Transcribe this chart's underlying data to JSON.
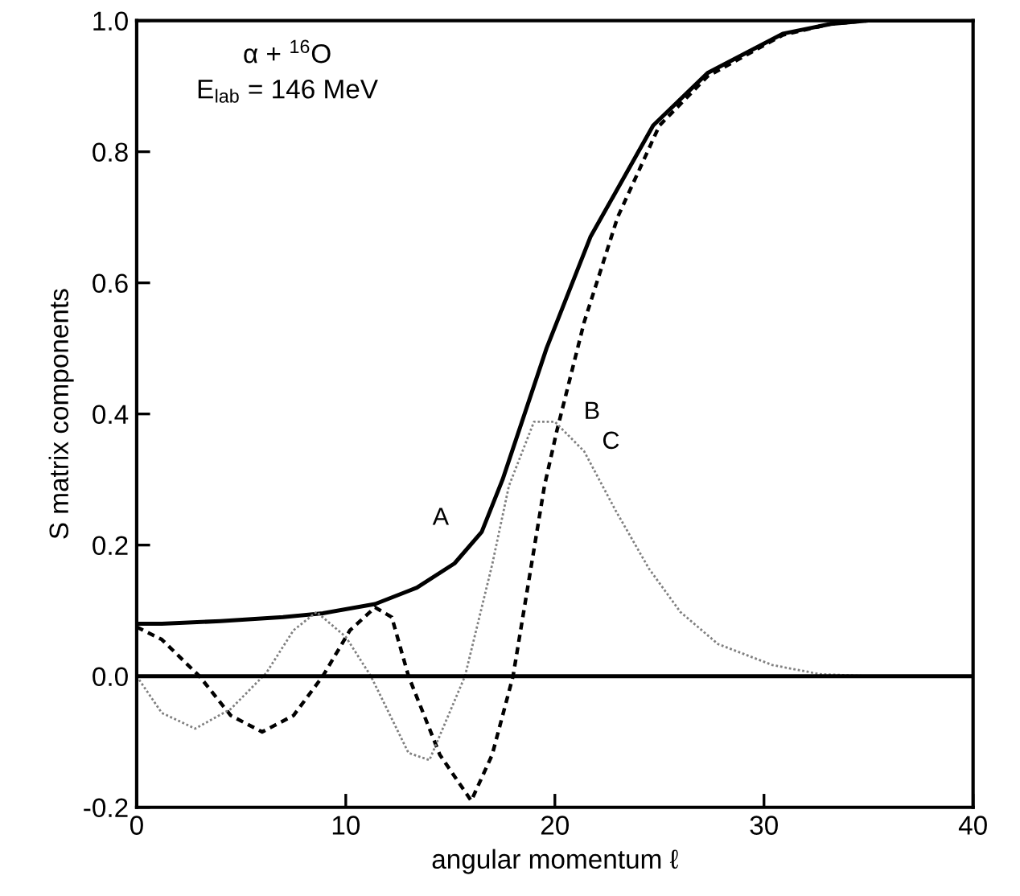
{
  "chart_data": {
    "type": "line",
    "xlabel": "angular momentum ℓ",
    "ylabel": "S matrix components",
    "annotations": [
      "α + $^{16}$O",
      "E$_{lab}$ = 146 MeV"
    ],
    "xlim": [
      0,
      40
    ],
    "xticks": [
      0,
      10,
      20,
      30,
      40
    ],
    "ylim": [
      -0.2,
      1.0
    ],
    "yticks": [
      {
        "value": -0.2,
        "label": "-0.2"
      },
      {
        "value": 0.0,
        "label": "0.0"
      },
      0.2,
      0.4,
      0.6,
      0.8,
      {
        "value": 1.0,
        "label": "1.0"
      }
    ],
    "grid": false,
    "legend": false,
    "marker": "none",
    "ref_lines": [
      {
        "axis": "y",
        "value": 0,
        "color": "#000000",
        "line_style": "solid"
      }
    ],
    "series": [
      {
        "name": "A",
        "color": "#000000",
        "line_style": "solid",
        "x": [
          0,
          1.2,
          4,
          7,
          8.9,
          11.4,
          13.4,
          15.2,
          16.5,
          17.5,
          19.6,
          21.7,
          24.7,
          27.3,
          30.9,
          33.2,
          35,
          40
        ],
        "values": [
          0.08,
          0.08,
          0.084,
          0.09,
          0.096,
          0.11,
          0.135,
          0.172,
          0.22,
          0.3,
          0.5,
          0.67,
          0.84,
          0.92,
          0.98,
          0.995,
          1.0,
          1.0
        ]
      },
      {
        "name": "B",
        "color": "#000000",
        "line_style": "dashed",
        "x": [
          0,
          1.2,
          3,
          4.5,
          6.0,
          7.5,
          8.9,
          10.2,
          11.4,
          12.2,
          13.0,
          14.5,
          16.0,
          17.0,
          18.0,
          19.5,
          20.1,
          21.4,
          23.0,
          25.0,
          27.3,
          30.9,
          33.2,
          35,
          40
        ],
        "values": [
          0.075,
          0.056,
          0.0,
          -0.06,
          -0.085,
          -0.06,
          0.0,
          0.07,
          0.105,
          0.09,
          0.0,
          -0.12,
          -0.19,
          -0.12,
          0.0,
          0.29,
          0.375,
          0.54,
          0.7,
          0.84,
          0.915,
          0.978,
          0.995,
          1.0,
          1.0
        ]
      },
      {
        "name": "C",
        "color": "#808080",
        "line_style": "dotted",
        "x": [
          0,
          1.2,
          2.8,
          4.5,
          6.2,
          7.5,
          8.6,
          10.0,
          11.2,
          13.0,
          14.0,
          15.7,
          17.0,
          17.8,
          19.0,
          20.0,
          21.4,
          22.9,
          24.5,
          26.0,
          27.8,
          30.4,
          32.7,
          35,
          40
        ],
        "values": [
          0.0,
          -0.056,
          -0.08,
          -0.05,
          0.005,
          0.07,
          0.098,
          0.06,
          0.0,
          -0.117,
          -0.128,
          0.0,
          0.17,
          0.29,
          0.388,
          0.388,
          0.343,
          0.253,
          0.164,
          0.098,
          0.049,
          0.017,
          0.003,
          0.0,
          0.0
        ]
      }
    ]
  }
}
